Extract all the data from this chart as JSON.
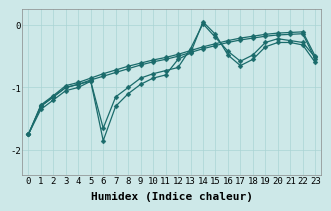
{
  "xlabel": "Humidex (Indice chaleur)",
  "xlim_left": -0.5,
  "xlim_right": 23.5,
  "ylim": [
    -2.4,
    0.25
  ],
  "yticks": [
    0,
    -1,
    -2
  ],
  "xticks": [
    0,
    1,
    2,
    3,
    4,
    5,
    6,
    7,
    8,
    9,
    10,
    11,
    12,
    13,
    14,
    15,
    16,
    17,
    18,
    19,
    20,
    21,
    22,
    23
  ],
  "bg_color": "#cde8e8",
  "line_color": "#1a6b6b",
  "grid_color": "#aad4d4",
  "font_family": "monospace",
  "xlabel_fontsize": 8,
  "tick_fontsize": 6.5,
  "linewidth": 0.9,
  "marker": "D",
  "marker_size": 2.5,
  "series": [
    [
      -1.75,
      -1.35,
      -1.2,
      -1.05,
      -1.0,
      -0.9,
      -1.85,
      -1.3,
      -1.1,
      -0.95,
      -0.85,
      -0.8,
      -0.55,
      -0.45,
      0.05,
      -0.15,
      -0.48,
      -0.65,
      -0.55,
      -0.35,
      -0.28,
      -0.28,
      -0.32,
      -0.6
    ],
    [
      -1.75,
      -1.3,
      -1.15,
      -1.0,
      -0.95,
      -0.88,
      -0.82,
      -0.76,
      -0.7,
      -0.64,
      -0.59,
      -0.55,
      -0.5,
      -0.44,
      -0.38,
      -0.33,
      -0.28,
      -0.24,
      -0.21,
      -0.18,
      -0.16,
      -0.15,
      -0.14,
      -0.55
    ],
    [
      -1.75,
      -1.28,
      -1.13,
      -0.97,
      -0.92,
      -0.85,
      -0.78,
      -0.72,
      -0.66,
      -0.61,
      -0.56,
      -0.52,
      -0.47,
      -0.41,
      -0.35,
      -0.3,
      -0.25,
      -0.21,
      -0.18,
      -0.15,
      -0.13,
      -0.12,
      -0.11,
      -0.5
    ],
    [
      -1.75,
      -1.3,
      -1.15,
      -1.0,
      -0.95,
      -0.9,
      -1.65,
      -1.15,
      -1.0,
      -0.85,
      -0.78,
      -0.73,
      -0.68,
      -0.38,
      0.02,
      -0.2,
      -0.42,
      -0.58,
      -0.48,
      -0.28,
      -0.22,
      -0.25,
      -0.28,
      -0.52
    ]
  ]
}
